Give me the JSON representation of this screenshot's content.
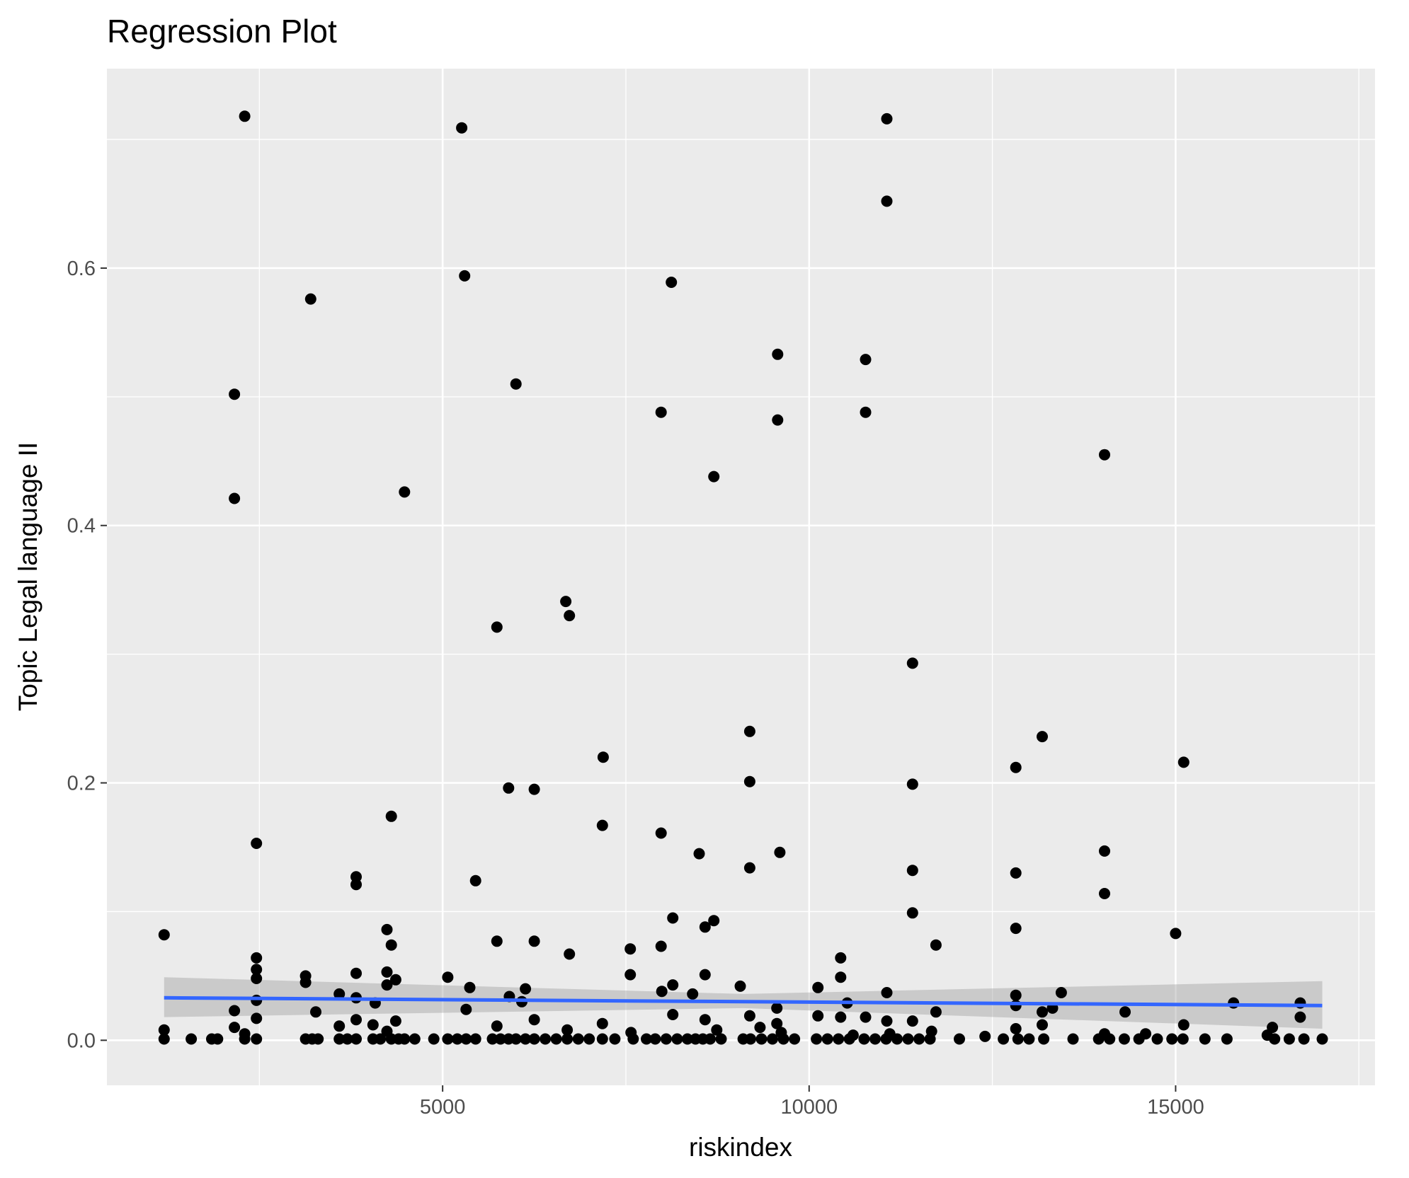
{
  "chart_data": {
    "type": "scatter",
    "title": "Regression Plot",
    "xlabel": "riskindex",
    "ylabel": "Topic Legal language II",
    "xlim": [
      420,
      17720
    ],
    "ylim": [
      -0.035,
      0.755
    ],
    "x_ticks": [
      5000,
      10000,
      15000
    ],
    "x_tick_labels": [
      "5000",
      "10000",
      "15000"
    ],
    "y_ticks": [
      0.0,
      0.2,
      0.4,
      0.6
    ],
    "y_tick_labels": [
      "0.0",
      "0.2",
      "0.4",
      "0.6"
    ],
    "grid": true,
    "background": "#ebebeb",
    "point_color": "#000000",
    "regression": {
      "color": "#3366ff",
      "band_color": "#999999",
      "x_range": [
        1200,
        17000
      ],
      "y_start": 0.033,
      "y_end": 0.027,
      "band_start": [
        0.018,
        0.049
      ],
      "band_mid": [
        0.025,
        0.036
      ],
      "band_end": [
        0.009,
        0.046
      ]
    },
    "points": [
      [
        2300,
        0.718
      ],
      [
        5260,
        0.709
      ],
      [
        11060,
        0.716
      ],
      [
        11060,
        0.652
      ],
      [
        5300,
        0.594
      ],
      [
        3200,
        0.576
      ],
      [
        8120,
        0.589
      ],
      [
        9570,
        0.533
      ],
      [
        10770,
        0.529
      ],
      [
        10770,
        0.488
      ],
      [
        9570,
        0.482
      ],
      [
        2160,
        0.502
      ],
      [
        6000,
        0.51
      ],
      [
        7980,
        0.488
      ],
      [
        2160,
        0.421
      ],
      [
        4480,
        0.426
      ],
      [
        8700,
        0.438
      ],
      [
        14030,
        0.455
      ],
      [
        6680,
        0.341
      ],
      [
        6730,
        0.33
      ],
      [
        5740,
        0.321
      ],
      [
        11410,
        0.293
      ],
      [
        9190,
        0.24
      ],
      [
        13180,
        0.236
      ],
      [
        7190,
        0.22
      ],
      [
        12820,
        0.212
      ],
      [
        15110,
        0.216
      ],
      [
        9190,
        0.201
      ],
      [
        11410,
        0.199
      ],
      [
        5900,
        0.196
      ],
      [
        6250,
        0.195
      ],
      [
        4300,
        0.174
      ],
      [
        7180,
        0.167
      ],
      [
        7980,
        0.161
      ],
      [
        2460,
        0.153
      ],
      [
        8500,
        0.145
      ],
      [
        9600,
        0.146
      ],
      [
        14030,
        0.147
      ],
      [
        9190,
        0.134
      ],
      [
        11410,
        0.132
      ],
      [
        12820,
        0.13
      ],
      [
        3820,
        0.127
      ],
      [
        3820,
        0.121
      ],
      [
        5450,
        0.124
      ],
      [
        14030,
        0.114
      ],
      [
        11410,
        0.099
      ],
      [
        8140,
        0.095
      ],
      [
        8700,
        0.093
      ],
      [
        8580,
        0.088
      ],
      [
        12820,
        0.087
      ],
      [
        4240,
        0.086
      ],
      [
        15000,
        0.083
      ],
      [
        1200,
        0.082
      ],
      [
        5740,
        0.077
      ],
      [
        6250,
        0.077
      ],
      [
        4300,
        0.074
      ],
      [
        11730,
        0.074
      ],
      [
        7980,
        0.073
      ],
      [
        7560,
        0.071
      ],
      [
        6730,
        0.067
      ],
      [
        2460,
        0.064
      ],
      [
        10430,
        0.064
      ],
      [
        2460,
        0.055
      ],
      [
        3820,
        0.052
      ],
      [
        4240,
        0.053
      ],
      [
        8580,
        0.051
      ],
      [
        7560,
        0.051
      ],
      [
        3130,
        0.05
      ],
      [
        5070,
        0.049
      ],
      [
        10430,
        0.049
      ],
      [
        2460,
        0.048
      ],
      [
        4360,
        0.047
      ],
      [
        3130,
        0.045
      ],
      [
        4240,
        0.043
      ],
      [
        8140,
        0.043
      ],
      [
        9060,
        0.042
      ],
      [
        10120,
        0.041
      ],
      [
        5370,
        0.041
      ],
      [
        6130,
        0.04
      ],
      [
        7990,
        0.038
      ],
      [
        13440,
        0.037
      ],
      [
        11060,
        0.037
      ],
      [
        3590,
        0.036
      ],
      [
        8410,
        0.036
      ],
      [
        12820,
        0.035
      ],
      [
        3820,
        0.033
      ],
      [
        5910,
        0.034
      ],
      [
        2460,
        0.031
      ],
      [
        6080,
        0.03
      ],
      [
        10520,
        0.029
      ],
      [
        4080,
        0.029
      ],
      [
        15790,
        0.029
      ],
      [
        16700,
        0.029
      ],
      [
        12820,
        0.027
      ],
      [
        9560,
        0.025
      ],
      [
        13320,
        0.025
      ],
      [
        5320,
        0.024
      ],
      [
        2160,
        0.023
      ],
      [
        3270,
        0.022
      ],
      [
        11730,
        0.022
      ],
      [
        14310,
        0.022
      ],
      [
        13180,
        0.022
      ],
      [
        8140,
        0.02
      ],
      [
        9190,
        0.019
      ],
      [
        10120,
        0.019
      ],
      [
        10430,
        0.018
      ],
      [
        10770,
        0.018
      ],
      [
        16700,
        0.018
      ],
      [
        2460,
        0.017
      ],
      [
        3820,
        0.016
      ],
      [
        6250,
        0.016
      ],
      [
        8580,
        0.016
      ],
      [
        4360,
        0.015
      ],
      [
        11060,
        0.015
      ],
      [
        11410,
        0.015
      ],
      [
        7180,
        0.013
      ],
      [
        9560,
        0.013
      ],
      [
        15110,
        0.012
      ],
      [
        4050,
        0.012
      ],
      [
        13180,
        0.012
      ],
      [
        3590,
        0.011
      ],
      [
        5740,
        0.011
      ],
      [
        2160,
        0.01
      ],
      [
        9330,
        0.01
      ],
      [
        16320,
        0.01
      ],
      [
        12820,
        0.009
      ],
      [
        1200,
        0.008
      ],
      [
        6700,
        0.008
      ],
      [
        8740,
        0.008
      ],
      [
        11670,
        0.007
      ],
      [
        4240,
        0.007
      ],
      [
        7570,
        0.006
      ],
      [
        9620,
        0.006
      ],
      [
        2300,
        0.005
      ],
      [
        14030,
        0.005
      ],
      [
        14590,
        0.005
      ],
      [
        11100,
        0.005
      ],
      [
        16250,
        0.004
      ],
      [
        10600,
        0.004
      ],
      [
        12400,
        0.003
      ],
      [
        1200,
        0.001
      ],
      [
        1570,
        0.001
      ],
      [
        1850,
        0.001
      ],
      [
        1930,
        0.001
      ],
      [
        2300,
        0.001
      ],
      [
        2460,
        0.001
      ],
      [
        3130,
        0.001
      ],
      [
        3220,
        0.001
      ],
      [
        3300,
        0.001
      ],
      [
        3590,
        0.001
      ],
      [
        3700,
        0.001
      ],
      [
        3820,
        0.001
      ],
      [
        4050,
        0.001
      ],
      [
        4150,
        0.001
      ],
      [
        4300,
        0.001
      ],
      [
        4400,
        0.001
      ],
      [
        4480,
        0.001
      ],
      [
        4620,
        0.001
      ],
      [
        4880,
        0.001
      ],
      [
        5070,
        0.001
      ],
      [
        5200,
        0.001
      ],
      [
        5320,
        0.001
      ],
      [
        5450,
        0.001
      ],
      [
        5680,
        0.001
      ],
      [
        5790,
        0.001
      ],
      [
        5900,
        0.001
      ],
      [
        6000,
        0.001
      ],
      [
        6130,
        0.001
      ],
      [
        6250,
        0.001
      ],
      [
        6400,
        0.001
      ],
      [
        6550,
        0.001
      ],
      [
        6700,
        0.001
      ],
      [
        6850,
        0.001
      ],
      [
        7000,
        0.001
      ],
      [
        7180,
        0.001
      ],
      [
        7350,
        0.001
      ],
      [
        7600,
        0.001
      ],
      [
        7780,
        0.001
      ],
      [
        7900,
        0.001
      ],
      [
        8050,
        0.001
      ],
      [
        8200,
        0.001
      ],
      [
        8340,
        0.001
      ],
      [
        8450,
        0.001
      ],
      [
        8550,
        0.001
      ],
      [
        8650,
        0.001
      ],
      [
        8800,
        0.001
      ],
      [
        9100,
        0.001
      ],
      [
        9200,
        0.001
      ],
      [
        9350,
        0.001
      ],
      [
        9500,
        0.001
      ],
      [
        9650,
        0.001
      ],
      [
        9800,
        0.001
      ],
      [
        10100,
        0.001
      ],
      [
        10250,
        0.001
      ],
      [
        10400,
        0.001
      ],
      [
        10550,
        0.001
      ],
      [
        10750,
        0.001
      ],
      [
        10900,
        0.001
      ],
      [
        11050,
        0.001
      ],
      [
        11200,
        0.001
      ],
      [
        11350,
        0.001
      ],
      [
        11500,
        0.001
      ],
      [
        11650,
        0.001
      ],
      [
        12050,
        0.001
      ],
      [
        12650,
        0.001
      ],
      [
        12850,
        0.001
      ],
      [
        13000,
        0.001
      ],
      [
        13200,
        0.001
      ],
      [
        13600,
        0.001
      ],
      [
        13950,
        0.001
      ],
      [
        14100,
        0.001
      ],
      [
        14300,
        0.001
      ],
      [
        14500,
        0.001
      ],
      [
        14750,
        0.001
      ],
      [
        14950,
        0.001
      ],
      [
        15100,
        0.001
      ],
      [
        15400,
        0.001
      ],
      [
        15700,
        0.001
      ],
      [
        16350,
        0.001
      ],
      [
        16550,
        0.001
      ],
      [
        16750,
        0.001
      ],
      [
        17000,
        0.001
      ]
    ]
  }
}
